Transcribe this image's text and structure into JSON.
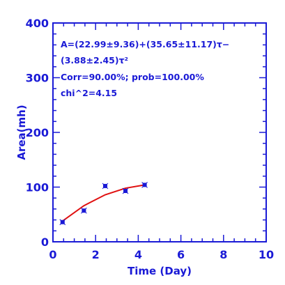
{
  "chart_data": {
    "type": "scatter",
    "xlabel": "Time (Day)",
    "ylabel": "Area(mh)",
    "xlim": [
      0,
      10
    ],
    "ylim": [
      0,
      400
    ],
    "x_ticks": [
      "0",
      "2",
      "4",
      "6",
      "8",
      "10"
    ],
    "y_ticks": [
      "0",
      "100",
      "200",
      "300",
      "400"
    ],
    "x_tick_values": [
      0,
      2,
      4,
      6,
      8,
      10
    ],
    "y_tick_values": [
      0,
      100,
      200,
      300,
      400
    ],
    "grid": false,
    "colors": {
      "axes": "#1a1ad6",
      "points": "#1a1ad6",
      "fit": "#e01010"
    },
    "series": [
      {
        "type": "scatter",
        "x": [
          0.45,
          1.45,
          2.45,
          3.4,
          4.3
        ],
        "y": [
          36,
          57,
          102,
          93,
          104
        ]
      },
      {
        "type": "line",
        "x": [
          0.45,
          1.45,
          2.45,
          3.4,
          4.3
        ],
        "y": [
          38,
          66,
          86,
          98,
          104
        ]
      }
    ],
    "annotations": [
      "A=(22.99±9.36)+(35.65±11.17)τ−",
      "(3.88±2.45)τ²",
      "Corr=90.00%;   prob=100.00%",
      "chi^2=4.15"
    ]
  }
}
